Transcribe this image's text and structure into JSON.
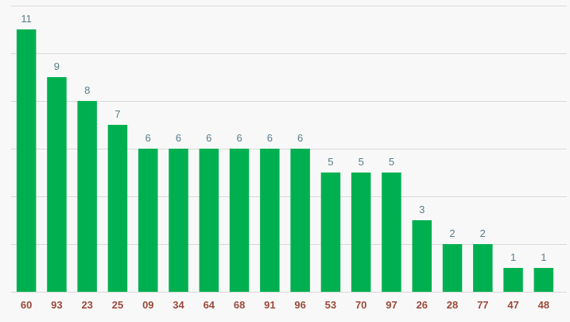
{
  "chart_data": {
    "type": "bar",
    "title": "",
    "xlabel": "",
    "ylabel": "",
    "categories": [
      "60",
      "93",
      "23",
      "25",
      "09",
      "34",
      "64",
      "68",
      "91",
      "96",
      "53",
      "70",
      "97",
      "26",
      "28",
      "77",
      "47",
      "48"
    ],
    "values": [
      11,
      9,
      8,
      7,
      6,
      6,
      6,
      6,
      6,
      6,
      5,
      5,
      5,
      3,
      2,
      2,
      1,
      1
    ],
    "ylim": [
      0,
      12
    ],
    "grid": true,
    "legend": "none",
    "bar_color": "#00b050",
    "grid_color": "#d9d9d9",
    "value_label_color": "#5a7d8c",
    "tick_label_color": "#9b4a3a",
    "background": "#f8f8f8"
  }
}
